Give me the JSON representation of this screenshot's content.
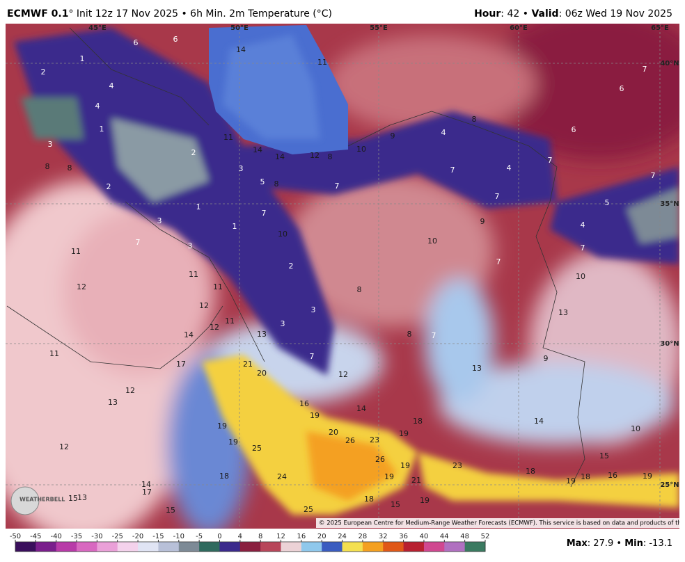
{
  "header": {
    "left": [
      "ECMWF 0.1",
      "° Init 12z 17 Nov 2025 • 6h Min. 2m Temperature (°C)"
    ],
    "right": [
      "Hour",
      ": 42 • ",
      "Valid",
      ": 06z Wed 19 Nov 2025"
    ]
  },
  "map": {
    "grid_labels": [
      "45°E",
      "50°E",
      "55°E",
      "60°E",
      "65°E",
      "40°N",
      "35°N",
      "30°N",
      "25°N"
    ],
    "values": [
      6,
      6,
      14,
      11,
      7,
      6,
      4,
      1,
      2,
      4,
      1,
      3,
      11,
      14,
      14,
      12,
      8,
      10,
      9,
      8,
      4,
      6,
      7,
      8,
      8,
      2,
      2,
      3,
      5,
      8,
      7,
      7,
      4,
      7,
      5,
      7,
      1,
      7,
      10,
      9,
      10,
      4,
      7,
      3,
      1,
      7,
      3,
      11,
      12,
      11,
      11,
      2,
      8,
      7,
      10,
      12,
      3,
      11,
      12,
      13,
      3,
      13,
      8,
      7,
      14,
      17,
      21,
      20,
      11,
      7,
      13,
      9,
      12,
      12,
      13,
      16,
      14,
      19,
      18,
      14,
      10,
      19,
      19,
      20,
      26,
      23,
      19,
      12,
      25,
      19,
      26,
      15,
      18,
      24,
      19,
      23,
      18,
      19,
      18,
      16,
      19,
      14,
      17,
      15,
      13,
      15,
      18,
      15,
      19,
      25,
      21
    ],
    "copyright": "© 2025 European Centre for Medium-Range Weather Forecasts (ECMWF). This service is based on data and products of the ECMWF.",
    "logo": "WEATHERBELL"
  },
  "colorbar": {
    "ticks": [
      -50,
      -45,
      -40,
      -35,
      -30,
      -25,
      -20,
      -15,
      -10,
      -5,
      0,
      4,
      8,
      12,
      16,
      20,
      24,
      28,
      32,
      36,
      40,
      44,
      48,
      52
    ],
    "colors": [
      "#3a0f5c",
      "#7a1e8c",
      "#b83aa8",
      "#d868c0",
      "#eaa0d8",
      "#f4d2ec",
      "#e0e4f4",
      "#b8c0d8",
      "#7d8a96",
      "#2f6a5e",
      "#3b2a8c",
      "#8a1f3f",
      "#b8465a",
      "#ecd2d6",
      "#8fc8ec",
      "#3a5cc0",
      "#f4e050",
      "#f4a020",
      "#e05818",
      "#b82030",
      "#d04890",
      "#b070c0",
      "#3a7a60"
    ]
  },
  "footer": [
    "Max",
    ": 27.9 • ",
    "Min",
    ": -13.1"
  ]
}
